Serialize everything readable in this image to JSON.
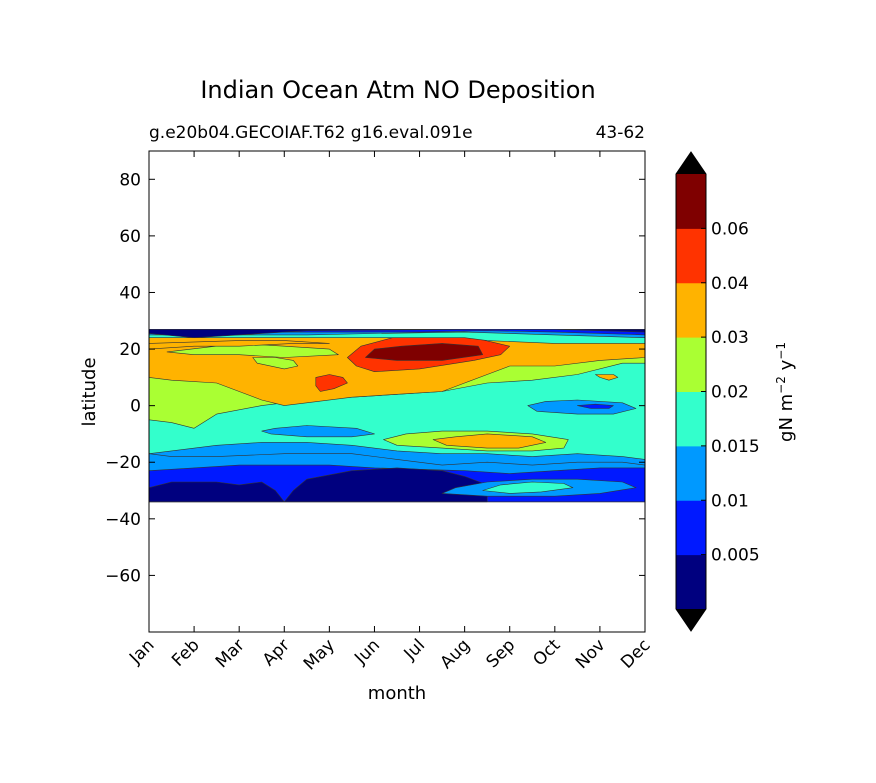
{
  "chart_data": {
    "type": "heatmap",
    "subtype": "filled-contour",
    "title": "Indian Ocean Atm NO Deposition",
    "subtitle_left": "g.e20b04.GECOIAF.T62 g16.eval.091e",
    "subtitle_right": "43-62",
    "xlabel": "month",
    "ylabel": "latitude",
    "x_categories": [
      "Jan",
      "Feb",
      "Mar",
      "Apr",
      "May",
      "Jun",
      "Jul",
      "Aug",
      "Sep",
      "Oct",
      "Nov",
      "Dec"
    ],
    "xlim": [
      0,
      11
    ],
    "ylim": [
      -80,
      90
    ],
    "y_ticks": [
      80,
      60,
      40,
      20,
      0,
      -20,
      -40,
      -60
    ],
    "y_tick_labels": [
      "80",
      "60",
      "40",
      "20",
      "0",
      "−20",
      "−40",
      "−60"
    ],
    "data_lat_range": [
      -34,
      27
    ],
    "colorbar": {
      "label_main": "gN m",
      "label_exp1": "−2",
      "label_mid": " y",
      "label_exp2": "−1",
      "levels": [
        0,
        0.005,
        0.01,
        0.015,
        0.02,
        0.03,
        0.04,
        0.06,
        0.07
      ],
      "tick_values": [
        0.005,
        0.01,
        0.015,
        0.02,
        0.03,
        0.04,
        0.06
      ],
      "tick_labels": [
        "0.005",
        "0.01",
        "0.015",
        "0.02",
        "0.03",
        "0.04",
        "0.06"
      ],
      "colors": [
        "#00007f",
        "#0019ff",
        "#0099ff",
        "#33ffcc",
        "#aaff33",
        "#ffb300",
        "#ff3300",
        "#7f0000"
      ],
      "under_color": "#000000",
      "over_color": "#000000",
      "extend": "both"
    },
    "regions": [
      {
        "level": 3,
        "points": [
          [
            0,
            27
          ],
          [
            11,
            27
          ],
          [
            11,
            -34
          ],
          [
            0,
            -34
          ]
        ]
      },
      {
        "level": 4,
        "points": [
          [
            0,
            27
          ],
          [
            11,
            27
          ],
          [
            11,
            -19
          ],
          [
            10.5,
            -18
          ],
          [
            9.5,
            -17
          ],
          [
            8.5,
            -18
          ],
          [
            7.5,
            -17
          ],
          [
            6.5,
            -17
          ],
          [
            5.5,
            -16
          ],
          [
            4.5,
            -14
          ],
          [
            3.5,
            -13
          ],
          [
            2.5,
            -13
          ],
          [
            1.5,
            -14
          ],
          [
            0.5,
            -16
          ],
          [
            0,
            -17
          ]
        ]
      },
      {
        "level": 5,
        "points": [
          [
            0,
            27
          ],
          [
            11,
            27
          ],
          [
            11,
            15
          ],
          [
            10.5,
            15
          ],
          [
            9.5,
            11
          ],
          [
            8.5,
            9
          ],
          [
            7.5,
            8
          ],
          [
            6.5,
            5
          ],
          [
            5.5,
            4
          ],
          [
            4.5,
            3
          ],
          [
            3.5,
            2
          ],
          [
            3,
            1
          ],
          [
            2.5,
            0
          ],
          [
            1.5,
            -3
          ],
          [
            1,
            -8
          ],
          [
            0.5,
            -6
          ],
          [
            0,
            -5
          ]
        ]
      },
      {
        "level": 6,
        "points": [
          [
            0,
            27
          ],
          [
            11,
            27
          ],
          [
            11,
            17
          ],
          [
            10,
            16
          ],
          [
            9,
            14
          ],
          [
            8,
            14
          ],
          [
            7.5,
            11
          ],
          [
            7,
            8
          ],
          [
            6.5,
            5
          ],
          [
            5.5,
            4
          ],
          [
            4.5,
            3
          ],
          [
            3.5,
            1
          ],
          [
            3,
            0
          ],
          [
            2.5,
            2
          ],
          [
            2,
            5
          ],
          [
            1.5,
            8
          ],
          [
            0.5,
            9
          ],
          [
            0,
            10
          ]
        ]
      },
      {
        "level": 7,
        "points": [
          [
            4.4,
            17
          ],
          [
            4.7,
            21
          ],
          [
            5.4,
            24
          ],
          [
            6.2,
            25
          ],
          [
            7.2,
            24
          ],
          [
            8.0,
            21
          ],
          [
            7.8,
            18
          ],
          [
            7.2,
            16
          ],
          [
            6.0,
            13
          ],
          [
            5.0,
            12
          ],
          [
            4.6,
            14
          ]
        ]
      },
      {
        "level": 8,
        "points": [
          [
            4.8,
            17
          ],
          [
            5.0,
            20
          ],
          [
            5.6,
            21
          ],
          [
            6.5,
            22
          ],
          [
            7.3,
            21
          ],
          [
            7.4,
            18
          ],
          [
            6.5,
            16
          ],
          [
            5.5,
            16
          ]
        ]
      },
      {
        "level": 7,
        "points": [
          [
            3.7,
            7
          ],
          [
            3.7,
            10
          ],
          [
            4.0,
            11
          ],
          [
            4.3,
            10
          ],
          [
            4.4,
            8
          ],
          [
            4.1,
            6
          ],
          [
            3.8,
            5
          ]
        ]
      },
      {
        "level": 5,
        "points": [
          [
            2.3,
            17
          ],
          [
            2.4,
            15
          ],
          [
            3.0,
            13
          ],
          [
            3.3,
            14
          ],
          [
            3.2,
            16
          ],
          [
            2.8,
            17
          ]
        ]
      },
      {
        "level": 5,
        "points": [
          [
            0.4,
            19
          ],
          [
            2,
            22
          ],
          [
            3,
            21
          ],
          [
            4,
            20
          ],
          [
            4.2,
            18
          ],
          [
            3,
            17
          ],
          [
            2,
            18
          ],
          [
            1,
            18
          ]
        ]
      },
      {
        "level": 6,
        "points": [
          [
            0,
            22
          ],
          [
            2,
            23
          ],
          [
            3,
            23
          ],
          [
            4,
            22
          ],
          [
            3.2,
            22
          ],
          [
            2,
            21
          ],
          [
            1,
            21
          ],
          [
            0,
            20
          ]
        ]
      },
      {
        "level": 4,
        "points": [
          [
            0,
            27
          ],
          [
            11,
            27
          ],
          [
            11,
            22
          ],
          [
            9,
            22
          ],
          [
            7.5,
            23
          ],
          [
            7,
            24
          ],
          [
            5,
            24
          ],
          [
            3.5,
            24
          ],
          [
            2,
            24
          ],
          [
            0,
            24
          ]
        ]
      },
      {
        "level": 3,
        "points": [
          [
            0,
            27
          ],
          [
            11,
            27
          ],
          [
            11,
            24
          ],
          [
            9,
            25
          ],
          [
            7,
            26
          ],
          [
            5,
            25.5
          ],
          [
            3.5,
            25
          ],
          [
            2,
            25
          ],
          [
            0,
            25
          ]
        ]
      },
      {
        "level": 2,
        "points": [
          [
            0,
            27
          ],
          [
            11,
            27
          ],
          [
            11,
            25
          ],
          [
            9,
            26
          ],
          [
            7.5,
            26.5
          ],
          [
            6,
            26
          ],
          [
            4.5,
            26
          ],
          [
            3,
            26
          ],
          [
            2,
            26.5
          ],
          [
            0,
            26.5
          ]
        ]
      },
      {
        "level": 1,
        "points": [
          [
            0,
            27
          ],
          [
            11,
            27
          ],
          [
            11,
            26
          ],
          [
            9,
            27
          ],
          [
            7,
            27
          ],
          [
            5,
            26.7
          ],
          [
            3.5,
            26.5
          ],
          [
            2,
            25
          ],
          [
            1,
            24
          ],
          [
            0,
            25.5
          ]
        ]
      },
      {
        "level": 6,
        "points": [
          [
            9.9,
            11
          ],
          [
            10.0,
            10
          ],
          [
            10.2,
            9
          ],
          [
            10.4,
            10
          ],
          [
            10.3,
            11
          ]
        ]
      },
      {
        "level": 3,
        "points": [
          [
            8.4,
            0
          ],
          [
            8.6,
            -2
          ],
          [
            9.5,
            -3
          ],
          [
            10.3,
            -3
          ],
          [
            10.8,
            -1
          ],
          [
            10.5,
            1
          ],
          [
            9.5,
            2
          ],
          [
            8.8,
            1.5
          ]
        ]
      },
      {
        "level": 2,
        "points": [
          [
            9.5,
            0
          ],
          [
            9.8,
            -1
          ],
          [
            10.2,
            -1
          ],
          [
            10.3,
            0
          ],
          [
            9.9,
            0.5
          ]
        ]
      },
      {
        "level": 3,
        "points": [
          [
            2.5,
            -9
          ],
          [
            2.7,
            -10
          ],
          [
            3.5,
            -11
          ],
          [
            4.5,
            -11
          ],
          [
            5.0,
            -10
          ],
          [
            4.6,
            -8
          ],
          [
            3.5,
            -7
          ],
          [
            2.8,
            -8
          ]
        ]
      },
      {
        "level": 5,
        "points": [
          [
            5.2,
            -12
          ],
          [
            5.5,
            -14
          ],
          [
            6.5,
            -15
          ],
          [
            7.5,
            -16
          ],
          [
            8.5,
            -16
          ],
          [
            9.2,
            -15
          ],
          [
            9.3,
            -12
          ],
          [
            8.5,
            -10
          ],
          [
            7.5,
            -9
          ],
          [
            6.5,
            -9
          ],
          [
            5.7,
            -10
          ]
        ]
      },
      {
        "level": 6,
        "points": [
          [
            6.3,
            -12
          ],
          [
            6.6,
            -14
          ],
          [
            7.5,
            -15
          ],
          [
            8.2,
            -15
          ],
          [
            8.8,
            -13
          ],
          [
            8.5,
            -11
          ],
          [
            7.5,
            -10
          ],
          [
            6.8,
            -11
          ]
        ]
      },
      {
        "level": 3,
        "points": [
          [
            0,
            -17
          ],
          [
            0.5,
            -18
          ],
          [
            1.5,
            -18
          ],
          [
            3,
            -17
          ],
          [
            4.5,
            -17
          ],
          [
            5.5,
            -19
          ],
          [
            6.5,
            -21
          ],
          [
            7.5,
            -20
          ],
          [
            8.5,
            -21
          ],
          [
            9.5,
            -20
          ],
          [
            10.5,
            -20
          ],
          [
            11,
            -21
          ],
          [
            11,
            -34
          ],
          [
            0,
            -34
          ]
        ]
      },
      {
        "level": 2,
        "points": [
          [
            0,
            -23
          ],
          [
            1,
            -22
          ],
          [
            2,
            -21
          ],
          [
            3,
            -21
          ],
          [
            4,
            -21
          ],
          [
            5,
            -22
          ],
          [
            6,
            -22.5
          ],
          [
            7,
            -23
          ],
          [
            8,
            -24
          ],
          [
            9,
            -23
          ],
          [
            10,
            -22
          ],
          [
            11,
            -22
          ],
          [
            11,
            -34
          ],
          [
            0,
            -34
          ]
        ]
      },
      {
        "level": 1,
        "points": [
          [
            3,
            -34
          ],
          [
            3.2,
            -30
          ],
          [
            3.5,
            -26
          ],
          [
            4.5,
            -23
          ],
          [
            5.5,
            -22
          ],
          [
            6.5,
            -23
          ],
          [
            7,
            -25
          ],
          [
            7.5,
            -28
          ],
          [
            7.5,
            -34
          ]
        ]
      },
      {
        "level": 3,
        "points": [
          [
            6.5,
            -31
          ],
          [
            6.8,
            -29
          ],
          [
            7.5,
            -27
          ],
          [
            8.5,
            -26
          ],
          [
            9.5,
            -26
          ],
          [
            10.5,
            -27
          ],
          [
            10.8,
            -29
          ],
          [
            10,
            -31
          ],
          [
            9,
            -32
          ],
          [
            7.5,
            -32
          ]
        ]
      },
      {
        "level": 4,
        "points": [
          [
            7.4,
            -30
          ],
          [
            7.8,
            -28
          ],
          [
            8.5,
            -27
          ],
          [
            9.2,
            -27.5
          ],
          [
            9.4,
            -29
          ],
          [
            8.7,
            -30.5
          ],
          [
            8,
            -31
          ]
        ]
      },
      {
        "level": 1,
        "points": [
          [
            0,
            -29
          ],
          [
            0.5,
            -27
          ],
          [
            1.5,
            -27
          ],
          [
            2,
            -28
          ],
          [
            2.5,
            -27
          ],
          [
            2.8,
            -30
          ],
          [
            3,
            -34
          ],
          [
            0,
            -34
          ]
        ]
      }
    ]
  }
}
